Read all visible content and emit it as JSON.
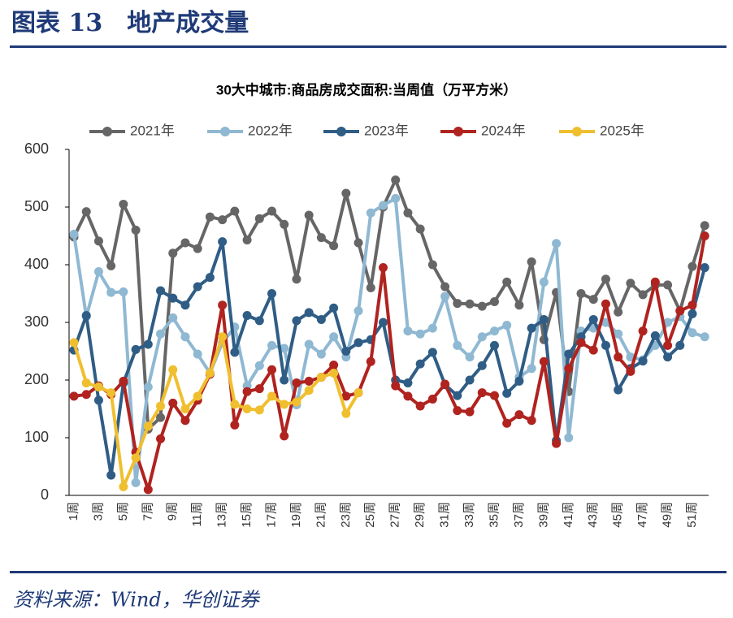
{
  "header": {
    "title": "图表 13　地产成交量"
  },
  "source": "资料来源：Wind，华创证券",
  "chart_data": {
    "type": "line",
    "title": "30大中城市:商品房成交面积:当周值（万平方米）",
    "categories": [
      "1周",
      null,
      "3周",
      null,
      "5周",
      null,
      "7周",
      null,
      "9周",
      null,
      "11周",
      null,
      "13周",
      null,
      "15周",
      null,
      "17周",
      null,
      "19周",
      null,
      "21周",
      null,
      "23周",
      null,
      "25周",
      null,
      "27周",
      null,
      "29周",
      null,
      "31周",
      null,
      "33周",
      null,
      "35周",
      null,
      "37周",
      null,
      "39周",
      null,
      "41周",
      null,
      "43周",
      null,
      "45周",
      null,
      "47周",
      null,
      "49周",
      null,
      "51周",
      null
    ],
    "ylim": [
      0,
      600
    ],
    "yticks": [
      0,
      100,
      200,
      300,
      400,
      500,
      600
    ],
    "legend": "top",
    "series": [
      {
        "name": "2021年",
        "color": "#666666",
        "values": [
          448,
          492,
          441,
          398,
          505,
          460,
          115,
          135,
          420,
          438,
          428,
          483,
          478,
          493,
          443,
          480,
          493,
          470,
          375,
          486,
          447,
          433,
          524,
          438,
          360,
          500,
          547,
          490,
          462,
          400,
          362,
          333,
          332,
          328,
          336,
          370,
          330,
          405,
          270,
          352,
          180,
          350,
          340,
          375,
          318,
          368,
          348,
          365,
          365,
          320,
          397,
          468
        ]
      },
      {
        "name": "2022年",
        "color": "#8fb8d2",
        "values": [
          453,
          310,
          388,
          352,
          353,
          22,
          188,
          280,
          308,
          275,
          245,
          212,
          265,
          292,
          190,
          225,
          260,
          255,
          157,
          262,
          245,
          275,
          240,
          320,
          490,
          503,
          515,
          285,
          280,
          290,
          345,
          260,
          240,
          275,
          285,
          295,
          205,
          220,
          370,
          437,
          100,
          285,
          290,
          300,
          280,
          240,
          235,
          260,
          300,
          310,
          282,
          275
        ]
      },
      {
        "name": "2023年",
        "color": "#2f5d85",
        "values": [
          252,
          312,
          165,
          35,
          195,
          253,
          262,
          355,
          342,
          330,
          362,
          378,
          440,
          248,
          312,
          303,
          350,
          200,
          303,
          317,
          305,
          325,
          250,
          265,
          270,
          300,
          200,
          195,
          228,
          248,
          192,
          173,
          200,
          225,
          260,
          177,
          198,
          290,
          305,
          95,
          245,
          275,
          305,
          260,
          183,
          220,
          233,
          277,
          240,
          260,
          315,
          395
        ]
      },
      {
        "name": "2024年",
        "color": "#b0231f",
        "values": [
          172,
          175,
          190,
          175,
          198,
          75,
          10,
          98,
          160,
          130,
          165,
          210,
          330,
          122,
          180,
          185,
          218,
          103,
          195,
          198,
          205,
          226,
          172,
          178,
          232,
          395,
          190,
          172,
          155,
          167,
          193,
          147,
          145,
          178,
          173,
          125,
          140,
          130,
          232,
          90,
          220,
          265,
          252,
          332,
          240,
          215,
          285,
          370,
          260,
          320,
          330,
          450
        ]
      },
      {
        "name": "2025年",
        "color": "#f0bf2f",
        "values": [
          265,
          195,
          188,
          178,
          15,
          65,
          120,
          155,
          218,
          150,
          172,
          212,
          275,
          158,
          150,
          148,
          172,
          158,
          162,
          182,
          205,
          212,
          142,
          178,
          null,
          null,
          null,
          null,
          null,
          null,
          null,
          null,
          null,
          null,
          null,
          null,
          null,
          null,
          null,
          null,
          null,
          null,
          null,
          null,
          null,
          null,
          null,
          null,
          null,
          null,
          null,
          null
        ]
      }
    ]
  }
}
